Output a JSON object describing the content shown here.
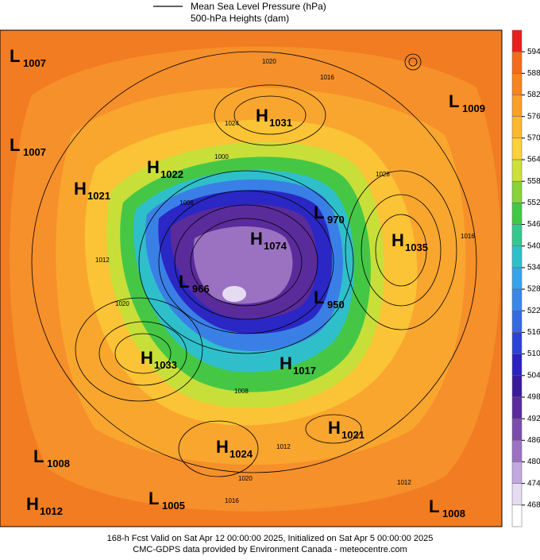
{
  "legend": {
    "line_label": "Mean Sea Level Pressure (hPa)",
    "fill_label": "500-hPa Heights (dam)"
  },
  "colorbar": {
    "ticks": [
      594,
      588,
      582,
      576,
      570,
      564,
      558,
      552,
      546,
      540,
      534,
      528,
      522,
      516,
      510,
      504,
      498,
      492,
      486,
      480,
      474,
      468
    ],
    "colors": [
      "#e81d1d",
      "#f26b1f",
      "#f6851f",
      "#f99f2a",
      "#fbb930",
      "#fcd23a",
      "#cfe03a",
      "#86d33c",
      "#44c745",
      "#33c88f",
      "#2fbfcb",
      "#38a3e8",
      "#3a87e8",
      "#3469e0",
      "#2c42d6",
      "#2a21bf",
      "#3a1a98",
      "#5a2b9b",
      "#7b4cab",
      "#9b72c2",
      "#c1a9dd",
      "#e6dcf2",
      "#ffffff"
    ]
  },
  "centers": [
    {
      "kind": "L",
      "value": "1007"
    },
    {
      "kind": "L",
      "value": "1007"
    },
    {
      "kind": "H",
      "value": "1031"
    },
    {
      "kind": "L",
      "value": "1009"
    },
    {
      "kind": "H",
      "value": "1022"
    },
    {
      "kind": "H",
      "value": "1021"
    },
    {
      "kind": "L",
      "value": "970"
    },
    {
      "kind": "H",
      "value": "1035"
    },
    {
      "kind": "H",
      "value": "1074"
    },
    {
      "kind": "L",
      "value": "966"
    },
    {
      "kind": "L",
      "value": "950"
    },
    {
      "kind": "H",
      "value": "1033"
    },
    {
      "kind": "H",
      "value": "1017"
    },
    {
      "kind": "H",
      "value": "1021"
    },
    {
      "kind": "H",
      "value": "1024"
    },
    {
      "kind": "L",
      "value": "1008"
    },
    {
      "kind": "H",
      "value": "1012"
    },
    {
      "kind": "L",
      "value": "1005"
    },
    {
      "kind": "L",
      "value": "1008"
    }
  ],
  "isobar_labels": [
    "1020",
    "1016",
    "1024",
    "1000",
    "1008",
    "1028",
    "1016",
    "1012",
    "1020",
    "1008",
    "1012",
    "1020",
    "1016",
    "1012"
  ],
  "footer": {
    "line1": "168-h Fcst Valid on Sat Apr 12 00:00:00 2025, Initialized on Sat Apr  5 00:00:00 2025",
    "line2": "CMC-GDPS data provided by Environment Canada - meteocentre.com"
  }
}
